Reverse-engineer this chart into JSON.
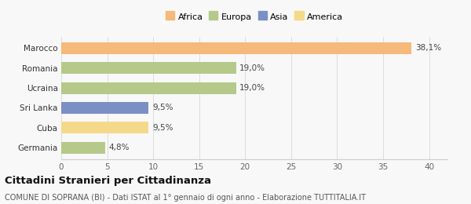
{
  "categories": [
    "Germania",
    "Cuba",
    "Sri Lanka",
    "Ucraina",
    "Romania",
    "Marocco"
  ],
  "values": [
    4.8,
    9.5,
    9.5,
    19.0,
    19.0,
    38.1
  ],
  "labels": [
    "4,8%",
    "9,5%",
    "9,5%",
    "19,0%",
    "19,0%",
    "38,1%"
  ],
  "colors": [
    "#b5c98a",
    "#f5d98a",
    "#7b8fc4",
    "#b5c98a",
    "#b5c98a",
    "#f5b97a"
  ],
  "legend_items": [
    {
      "label": "Africa",
      "color": "#f5b97a"
    },
    {
      "label": "Europa",
      "color": "#b5c98a"
    },
    {
      "label": "Asia",
      "color": "#7b8fc4"
    },
    {
      "label": "America",
      "color": "#f5d98a"
    }
  ],
  "xlim": [
    0,
    42
  ],
  "xticks": [
    0,
    5,
    10,
    15,
    20,
    25,
    30,
    35,
    40
  ],
  "title": "Cittadini Stranieri per Cittadinanza",
  "subtitle": "COMUNE DI SOPRANA (BI) - Dati ISTAT al 1° gennaio di ogni anno - Elaborazione TUTTITALIA.IT",
  "background_color": "#f8f8f8",
  "title_fontsize": 9.5,
  "subtitle_fontsize": 7,
  "label_fontsize": 7.5,
  "tick_fontsize": 7.5,
  "bar_height": 0.6
}
